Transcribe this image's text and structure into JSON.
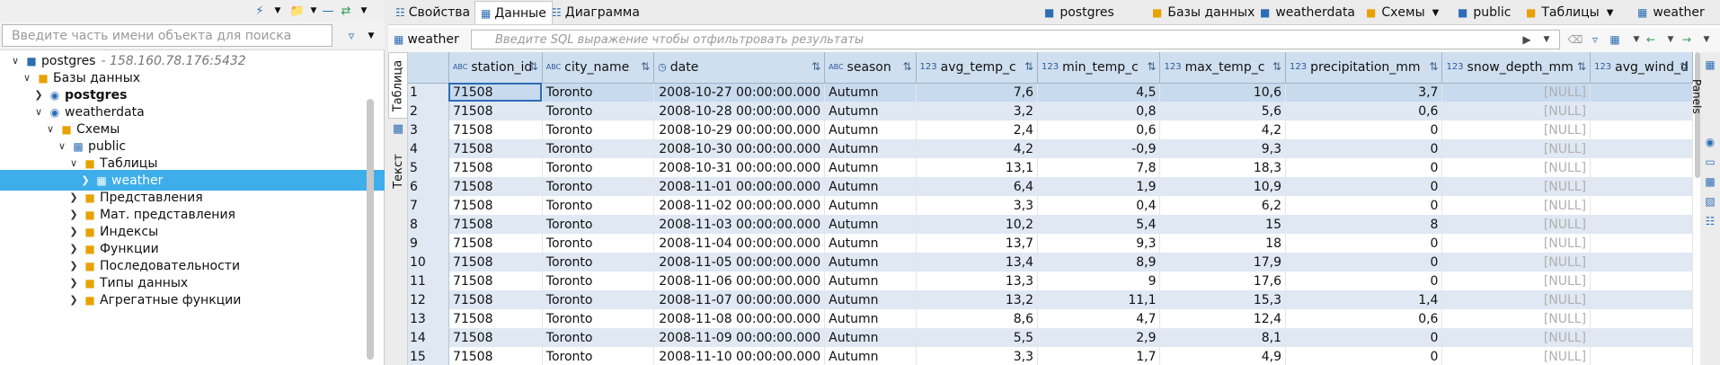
{
  "navigator": {
    "search_placeholder": "Введите часть имени объекта для поиска",
    "tree": [
      {
        "label": "postgres",
        "host": "- 158.160.78.176:5432",
        "bold": false,
        "indent": 0,
        "expand": "v",
        "icon": "server-icon"
      },
      {
        "label": "Базы данных",
        "bold": false,
        "indent": 1,
        "expand": "v",
        "icon": "folder-icon"
      },
      {
        "label": "postgres",
        "bold": true,
        "indent": 2,
        "expand": ">",
        "icon": "database-icon"
      },
      {
        "label": "weatherdata",
        "bold": false,
        "indent": 2,
        "expand": "v",
        "icon": "database-icon"
      },
      {
        "label": "Схемы",
        "bold": false,
        "indent": 3,
        "expand": "v",
        "icon": "folder-icon"
      },
      {
        "label": "public",
        "bold": false,
        "indent": 4,
        "expand": "v",
        "icon": "schema-icon"
      },
      {
        "label": "Таблицы",
        "bold": false,
        "indent": 5,
        "expand": "v",
        "icon": "folder-icon"
      },
      {
        "label": "weather",
        "bold": false,
        "indent": 6,
        "expand": ">",
        "icon": "table-icon",
        "selected": true
      },
      {
        "label": "Представления",
        "bold": false,
        "indent": 5,
        "expand": ">",
        "icon": "folder-icon"
      },
      {
        "label": "Мат. представления",
        "bold": false,
        "indent": 5,
        "expand": ">",
        "icon": "folder-icon"
      },
      {
        "label": "Индексы",
        "bold": false,
        "indent": 5,
        "expand": ">",
        "icon": "folder-icon"
      },
      {
        "label": "Функции",
        "bold": false,
        "indent": 5,
        "expand": ">",
        "icon": "folder-icon"
      },
      {
        "label": "Последовательности",
        "bold": false,
        "indent": 5,
        "expand": ">",
        "icon": "folder-icon"
      },
      {
        "label": "Типы данных",
        "bold": false,
        "indent": 5,
        "expand": ">",
        "icon": "folder-icon"
      },
      {
        "label": "Агрегатные функции",
        "bold": false,
        "indent": 5,
        "expand": ">",
        "icon": "folder-icon"
      }
    ]
  },
  "editor": {
    "tabs": [
      {
        "label": "Свойства",
        "active": false
      },
      {
        "label": "Данные",
        "active": true
      },
      {
        "label": "Диаграмма",
        "active": false
      }
    ],
    "breadcrumb": [
      {
        "label": "postgres",
        "dropdown": false
      },
      {
        "label": "Базы данных",
        "dropdown": true
      },
      {
        "label": "weatherdata",
        "dropdown": false
      },
      {
        "label": "Схемы",
        "dropdown": true
      },
      {
        "label": "public",
        "dropdown": false
      },
      {
        "label": "Таблицы",
        "dropdown": true
      },
      {
        "label": "weather",
        "dropdown": false
      }
    ],
    "object_name": "weather",
    "filter_placeholder": "Введите SQL выражение чтобы отфильтровать результаты",
    "side_tabs": {
      "table": "Таблица",
      "text": "Текст"
    },
    "panels_label": "Panels"
  },
  "grid": {
    "columns": [
      {
        "name": "station_id",
        "type": "ABC"
      },
      {
        "name": "city_name",
        "type": "ABC"
      },
      {
        "name": "date",
        "type": "date"
      },
      {
        "name": "season",
        "type": "ABC"
      },
      {
        "name": "avg_temp_c",
        "type": "123"
      },
      {
        "name": "min_temp_c",
        "type": "123"
      },
      {
        "name": "max_temp_c",
        "type": "123"
      },
      {
        "name": "precipitation_mm",
        "type": "123"
      },
      {
        "name": "snow_depth_mm",
        "type": "123"
      },
      {
        "name": "avg_wind_d",
        "type": "123"
      }
    ],
    "rows": [
      [
        "1",
        "71508",
        "Toronto",
        "2008-10-27 00:00:00.000",
        "Autumn",
        "7,6",
        "4,5",
        "10,6",
        "3,7",
        "[NULL]",
        ""
      ],
      [
        "2",
        "71508",
        "Toronto",
        "2008-10-28 00:00:00.000",
        "Autumn",
        "3,2",
        "0,8",
        "5,6",
        "0,6",
        "[NULL]",
        ""
      ],
      [
        "3",
        "71508",
        "Toronto",
        "2008-10-29 00:00:00.000",
        "Autumn",
        "2,4",
        "0,6",
        "4,2",
        "0",
        "[NULL]",
        ""
      ],
      [
        "4",
        "71508",
        "Toronto",
        "2008-10-30 00:00:00.000",
        "Autumn",
        "4,2",
        "-0,9",
        "9,3",
        "0",
        "[NULL]",
        ""
      ],
      [
        "5",
        "71508",
        "Toronto",
        "2008-10-31 00:00:00.000",
        "Autumn",
        "13,1",
        "7,8",
        "18,3",
        "0",
        "[NULL]",
        ""
      ],
      [
        "6",
        "71508",
        "Toronto",
        "2008-11-01 00:00:00.000",
        "Autumn",
        "6,4",
        "1,9",
        "10,9",
        "0",
        "[NULL]",
        ""
      ],
      [
        "7",
        "71508",
        "Toronto",
        "2008-11-02 00:00:00.000",
        "Autumn",
        "3,3",
        "0,4",
        "6,2",
        "0",
        "[NULL]",
        ""
      ],
      [
        "8",
        "71508",
        "Toronto",
        "2008-11-03 00:00:00.000",
        "Autumn",
        "10,2",
        "5,4",
        "15",
        "8",
        "[NULL]",
        ""
      ],
      [
        "9",
        "71508",
        "Toronto",
        "2008-11-04 00:00:00.000",
        "Autumn",
        "13,7",
        "9,3",
        "18",
        "0",
        "[NULL]",
        ""
      ],
      [
        "10",
        "71508",
        "Toronto",
        "2008-11-05 00:00:00.000",
        "Autumn",
        "13,4",
        "8,9",
        "17,9",
        "0",
        "[NULL]",
        ""
      ],
      [
        "11",
        "71508",
        "Toronto",
        "2008-11-06 00:00:00.000",
        "Autumn",
        "13,3",
        "9",
        "17,6",
        "0",
        "[NULL]",
        ""
      ],
      [
        "12",
        "71508",
        "Toronto",
        "2008-11-07 00:00:00.000",
        "Autumn",
        "13,2",
        "11,1",
        "15,3",
        "1,4",
        "[NULL]",
        ""
      ],
      [
        "13",
        "71508",
        "Toronto",
        "2008-11-08 00:00:00.000",
        "Autumn",
        "8,6",
        "4,7",
        "12,4",
        "0,6",
        "[NULL]",
        ""
      ],
      [
        "14",
        "71508",
        "Toronto",
        "2008-11-09 00:00:00.000",
        "Autumn",
        "5,5",
        "2,9",
        "8,1",
        "0",
        "[NULL]",
        ""
      ],
      [
        "15",
        "71508",
        "Toronto",
        "2008-11-10 00:00:00.000",
        "Autumn",
        "3,3",
        "1,7",
        "4,9",
        "0",
        "[NULL]",
        ""
      ]
    ]
  },
  "colors": {
    "selection": "#3daee9",
    "header_bg": "#cfdff0",
    "stripe": "#dfe8f3",
    "accent": "#2c6db5"
  }
}
